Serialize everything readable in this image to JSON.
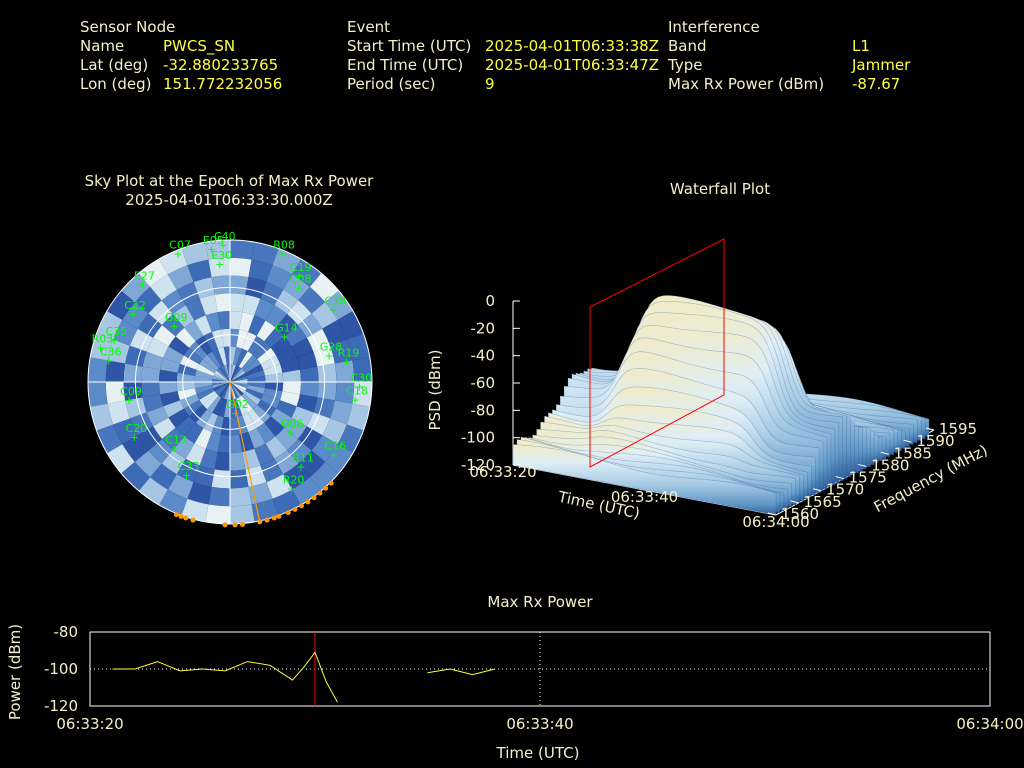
{
  "header": {
    "sensor": {
      "title": "Sensor Node",
      "name_label": "Name",
      "name_value": "PWCS_SN",
      "lat_label": "Lat (deg)",
      "lat_value": "-32.880233765",
      "lon_label": "Lon (deg)",
      "lon_value": "151.772232056"
    },
    "event": {
      "title": "Event",
      "start_label": "Start Time (UTC)",
      "start_value": "2025-04-01T06:33:38Z",
      "end_label": "End Time (UTC)",
      "end_value": "2025-04-01T06:33:47Z",
      "period_label": "Period (sec)",
      "period_value": "9"
    },
    "interference": {
      "title": "Interference",
      "band_label": "Band",
      "band_value": "L1",
      "type_label": "Type",
      "type_value": "Jammer",
      "power_label": "Max Rx Power (dBm)",
      "power_value": "-87.67"
    }
  },
  "colors": {
    "label": "#f5f0c8",
    "value": "#ffff40",
    "satellite": "#00ff00",
    "jammer_direction": "#ff9900",
    "red_marker": "#ff0000"
  },
  "chart_data": [
    {
      "type": "scatter",
      "title": "Sky Plot at the Epoch of Max Rx Power",
      "subtitle": "2025-04-01T06:33:30.000Z",
      "projection": "polar-sky",
      "satellites": [
        {
          "id": "C07",
          "az": 338,
          "el": 2
        },
        {
          "id": "C40",
          "az": 357,
          "el": 3
        },
        {
          "id": "E05",
          "az": 352,
          "el": 5
        },
        {
          "id": "R08",
          "az": 22,
          "el": 2
        },
        {
          "id": "E27",
          "az": 318,
          "el": 7
        },
        {
          "id": "E30",
          "az": 355,
          "el": 15
        },
        {
          "id": "C19",
          "az": 33,
          "el": 10
        },
        {
          "id": "C08",
          "az": 36,
          "el": 16
        },
        {
          "id": "C22",
          "az": 305,
          "el": 15
        },
        {
          "id": "C38",
          "az": 55,
          "el": 10
        },
        {
          "id": "C35",
          "az": 290,
          "el": 12
        },
        {
          "id": "G14",
          "az": 50,
          "el": 45
        },
        {
          "id": "R03",
          "az": 285,
          "el": 5
        },
        {
          "id": "C36",
          "az": 280,
          "el": 12
        },
        {
          "id": "G09",
          "az": 315,
          "el": 40
        },
        {
          "id": "R19",
          "az": 80,
          "el": 15
        },
        {
          "id": "G28",
          "az": 75,
          "el": 25
        },
        {
          "id": "C09",
          "az": 260,
          "el": 25
        },
        {
          "id": "C30",
          "az": 92,
          "el": 8
        },
        {
          "id": "C18",
          "az": 98,
          "el": 10
        },
        {
          "id": "C20",
          "az": 240,
          "el": 20
        },
        {
          "id": "G02",
          "az": 170,
          "el": 70
        },
        {
          "id": "G06",
          "az": 130,
          "el": 40
        },
        {
          "id": "R11",
          "az": 140,
          "el": 20
        },
        {
          "id": "C13",
          "az": 220,
          "el": 35
        },
        {
          "id": "C33",
          "az": 205,
          "el": 25
        },
        {
          "id": "R20",
          "az": 150,
          "el": 12
        },
        {
          "id": "C16",
          "az": 125,
          "el": 10
        }
      ],
      "elevation_rings": [
        0,
        30,
        60
      ],
      "jammer_azimuth_deg": 168
    },
    {
      "type": "area",
      "title": "Waterfall Plot",
      "projection": "3d-surface",
      "xlabel": "Time (UTC)",
      "ylabel": "Frequency (MHz)",
      "zlabel": "PSD (dBm)",
      "x_ticks": [
        "06:33:20",
        "06:33:40",
        "06:34:00"
      ],
      "y_ticks": [
        "1560",
        "1565",
        "1570",
        "1575",
        "1580",
        "1585",
        "1590",
        "1595"
      ],
      "z_ticks": [
        "0",
        "-20",
        "-40",
        "-60",
        "-80",
        "-100",
        "-120"
      ],
      "zlim": [
        -120,
        0
      ],
      "peak_psd_dbm": -5,
      "marker_time": "06:33:30"
    },
    {
      "type": "line",
      "title": "Max Rx Power",
      "xlabel": "Time (UTC)",
      "ylabel": "Power (dBm)",
      "x_ticks": [
        "06:33:20",
        "06:33:40",
        "06:34:00"
      ],
      "y_ticks": [
        "-80",
        "-100",
        "-120"
      ],
      "xlim_seconds": [
        0,
        40
      ],
      "ylim": [
        -120,
        -80
      ],
      "grid": true,
      "marker_time_seconds": 10,
      "series": [
        {
          "x": [
            1,
            2,
            3,
            4,
            5,
            6,
            7,
            8,
            9,
            9.5,
            10,
            10.5,
            11
          ],
          "y": [
            -100,
            -100,
            -96,
            -101,
            -100,
            -101,
            -96,
            -98,
            -106,
            -99,
            -91,
            -107,
            -118
          ]
        },
        {
          "x": [
            15,
            16,
            17,
            18
          ],
          "y": [
            -102,
            -100,
            -103,
            -100
          ]
        }
      ]
    }
  ]
}
